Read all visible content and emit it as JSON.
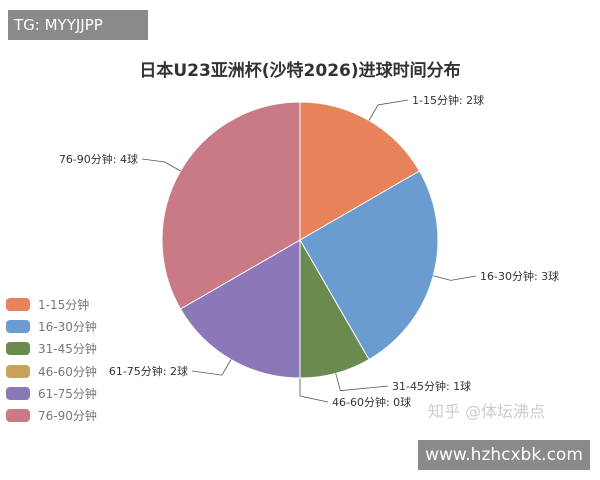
{
  "overlay": {
    "tg": "TG: MYYJJPP",
    "watermark": "知乎 @体坛沸点",
    "url": "www.hzhcxbk.com"
  },
  "chart_data": {
    "type": "pie",
    "title": "日本U23亚洲杯(沙特2026)进球时间分布",
    "categories": [
      "1-15分钟",
      "16-30分钟",
      "31-45分钟",
      "46-60分钟",
      "61-75分钟",
      "76-90分钟"
    ],
    "values": [
      2,
      3,
      1,
      0,
      2,
      4
    ],
    "data_labels": [
      "1-15分钟: 2球",
      "16-30分钟: 3球",
      "31-45分钟: 1球",
      "46-60分钟: 0球",
      "61-75分钟: 2球",
      "76-90分钟: 4球"
    ],
    "colors": [
      "#e8825a",
      "#6a9ccf",
      "#6a8a50",
      "#c9a25a",
      "#8c78b8",
      "#c97a85"
    ],
    "legend_position": "left-bottom",
    "start_angle": "top, clockwise"
  }
}
